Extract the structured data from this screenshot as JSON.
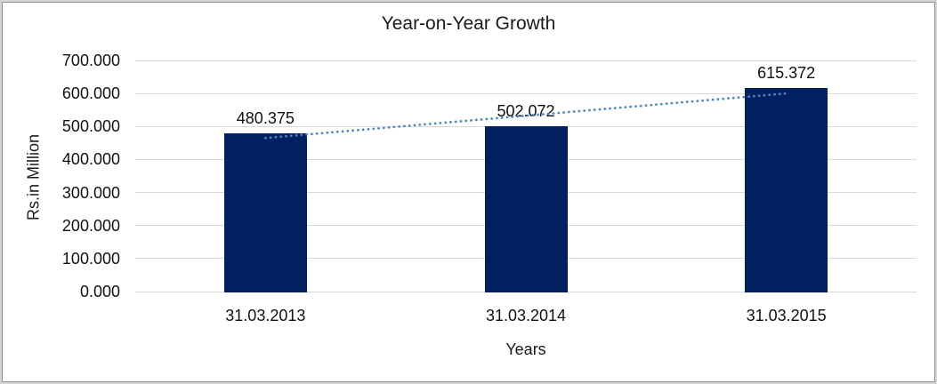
{
  "chart_data": {
    "type": "bar",
    "title": "Year-on-Year Growth",
    "xlabel": "Years",
    "ylabel": "Rs.in Million",
    "categories": [
      "31.03.2013",
      "31.03.2014",
      "31.03.2015"
    ],
    "values": [
      480.375,
      502.072,
      615.372
    ],
    "data_labels": [
      "480.375",
      "502.072",
      "615.372"
    ],
    "ylim": [
      0,
      700
    ],
    "ytick_step": 100,
    "ytick_labels": [
      "700.000",
      "600.000",
      "500.000",
      "400.000",
      "300.000",
      "200.000",
      "100.000",
      "0.000"
    ],
    "grid": "horizontal",
    "legend_position": "none",
    "trendline": {
      "type": "linear",
      "style": "dotted"
    },
    "colors": {
      "bar": "#002060",
      "trendline": "#4e86c8",
      "gridline": "#d9d9d9",
      "text": "#111111",
      "frame_outer": "#d5d5d5",
      "frame_inner": "#8f8f8f",
      "background": "#ffffff"
    }
  }
}
